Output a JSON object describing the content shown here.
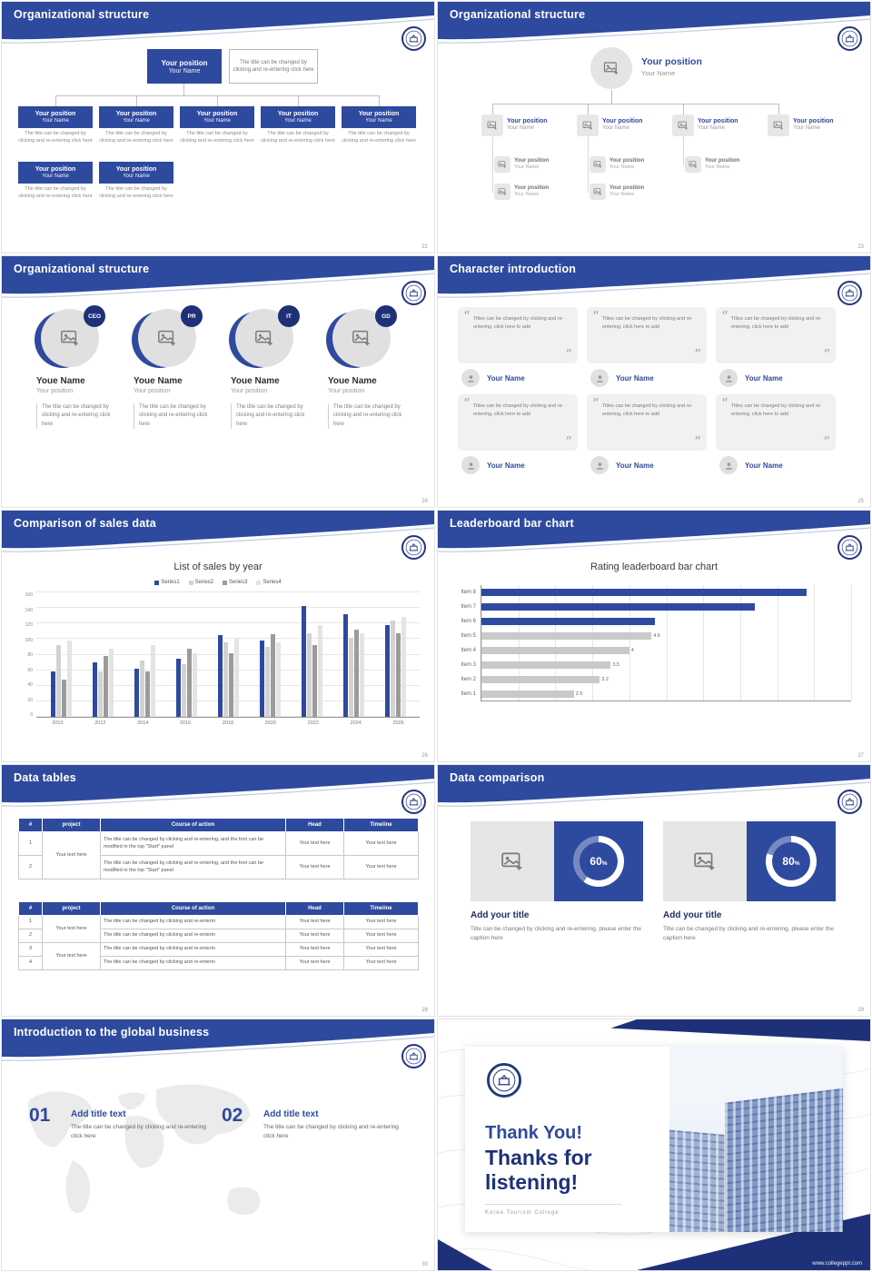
{
  "theme": {
    "blue": "#2e4a9e",
    "dark_blue": "#1e3178",
    "light_blue": "#9fadd6",
    "bar_gray": "#c9c9c9"
  },
  "common": {
    "position": "Your position",
    "name": "Your Name",
    "percent": "%",
    "quote_open": "“",
    "quote_close": "”"
  },
  "slides": {
    "s22": {
      "title": "Organizational structure",
      "page": "22",
      "top_box": {
        "position": "Your position",
        "name": "Your Name"
      },
      "top_caption": "The title can be changed by clicking and re-entering click here",
      "box_caption": "The title can be changed by clicking and re-entering click here"
    },
    "s23": {
      "title": "Organizational structure",
      "page": "23"
    },
    "s24": {
      "title": "Organizational structure",
      "page": "24",
      "badges": [
        "CEO",
        "PR",
        "IT",
        "GD"
      ],
      "name": "Youe Name",
      "position": "Your position",
      "caption": "The title can be changed by clicking and re-entering click here"
    },
    "s25": {
      "title": "Character introduction",
      "page": "25",
      "quote": "Titles can be changed by clicking and re-entering, click here to add",
      "name": "Your Name"
    },
    "s26": {
      "title": "Comparison of sales data",
      "page": "26"
    },
    "s27": {
      "title": "Leaderboard bar chart",
      "page": "27"
    },
    "s28": {
      "title": "Data tables",
      "page": "28",
      "headers": [
        "#",
        "project",
        "Course of action",
        "Head",
        "Timeline"
      ],
      "table1": {
        "project": "Your text here",
        "rows": [
          {
            "num": "1",
            "course": "The title can be changed by clicking and re-entering, and the font can be modified in the top \"Start\" panel",
            "head": "Your text here",
            "timeline": "Your text here"
          },
          {
            "num": "2",
            "course": "The title can be changed by clicking and re-entering, and the font can be modified in the top \"Start\" panel",
            "head": "Your text here",
            "timeline": "Your text here"
          }
        ]
      },
      "table2": {
        "projects": [
          "Your text here",
          "Your text here"
        ],
        "rows": [
          {
            "num": "1",
            "course": "The title can be changed by clicking and re-enterin",
            "head": "Your text here",
            "timeline": "Your text here"
          },
          {
            "num": "2",
            "course": "The title can be changed by clicking and re-enterin",
            "head": "Your text here",
            "timeline": "Your text here"
          },
          {
            "num": "3",
            "course": "The title can be changed by clicking and re-enterin",
            "head": "Your text here",
            "timeline": "Your text here"
          },
          {
            "num": "4",
            "course": "The title can be changed by clicking and re-enterin",
            "head": "Your text here",
            "timeline": "Your text here"
          }
        ]
      }
    },
    "s29": {
      "title": "Data comparison",
      "page": "29",
      "cards": [
        {
          "pct": "60",
          "title": "Add your title",
          "caption": "Title can be changed by clicking and re-entering, please enter the caption here"
        },
        {
          "pct": "80",
          "title": "Add your title",
          "caption": "Title can be changed by clicking and re-entering, please enter the caption here"
        }
      ]
    },
    "s30": {
      "title": "Introduction to the global business",
      "page": "30",
      "items": [
        {
          "num": "01",
          "title": "Add title text",
          "caption": "The title can be changed by clicking and re-entering click here"
        },
        {
          "num": "02",
          "title": "Add title text",
          "caption": "The title can be changed by clicking and re-entering click here"
        }
      ]
    },
    "s31": {
      "thank_you": "Thank You!",
      "subtitle": "Thanks for listening!",
      "college": "Korea Tourism College",
      "site": "www.collegeppt.com"
    }
  },
  "chart_data": [
    {
      "type": "bar",
      "title": "List of sales by year",
      "categories": [
        "2010",
        "2012",
        "2014",
        "2016",
        "2018",
        "2020",
        "2022",
        "2024",
        "2026"
      ],
      "series": [
        {
          "name": "Series1",
          "color": "#2e4a9e",
          "values": [
            58,
            70,
            62,
            75,
            105,
            98,
            142,
            132,
            118
          ]
        },
        {
          "name": "Series2",
          "color": "#d2d2d2",
          "values": [
            92,
            58,
            73,
            68,
            96,
            90,
            108,
            102,
            124
          ]
        },
        {
          "name": "Series3",
          "color": "#9b9b9b",
          "values": [
            48,
            78,
            58,
            88,
            82,
            106,
            92,
            112,
            108
          ]
        },
        {
          "name": "Series4",
          "color": "#e4e4e4",
          "values": [
            98,
            88,
            92,
            82,
            100,
            96,
            118,
            108,
            128
          ]
        }
      ],
      "ylim": [
        0,
        160
      ],
      "ytick": 20,
      "grid": true,
      "legend_position": "top"
    },
    {
      "type": "hbar",
      "title": "Rating leaderboard bar chart",
      "categories": [
        "Item 8",
        "Item 7",
        "Item 6",
        "Item 5",
        "Item 4",
        "Item 3",
        "Item 2",
        "Item 1"
      ],
      "values": [
        8.8,
        7.4,
        4.7,
        4.6,
        4,
        3.5,
        3.2,
        2.5
      ],
      "colors": [
        "#2e4a9e",
        "#2e4a9e",
        "#2e4a9e",
        "#c9c9c9",
        "#c9c9c9",
        "#c9c9c9",
        "#c9c9c9",
        "#c9c9c9"
      ],
      "data_labels": [
        null,
        null,
        null,
        "4.6",
        "4",
        "3.5",
        "3.2",
        "2.5"
      ],
      "xlim": [
        0,
        10
      ],
      "xtick": 1,
      "grid": true
    }
  ]
}
